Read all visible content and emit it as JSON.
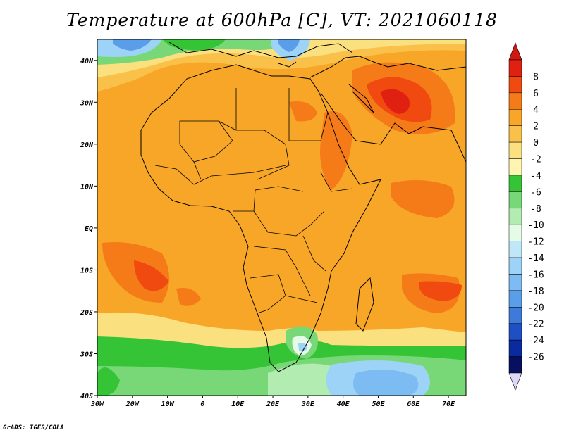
{
  "title": "Temperature at 600hPa [C], VT: 2021060118",
  "credit": "GrADS: IGES/COLA",
  "map": {
    "lon_range": [
      -30,
      75
    ],
    "lat_range": [
      -40,
      45
    ],
    "x_ticks": [
      {
        "value": -30,
        "label": "30W"
      },
      {
        "value": -20,
        "label": "20W"
      },
      {
        "value": -10,
        "label": "10W"
      },
      {
        "value": 0,
        "label": "0"
      },
      {
        "value": 10,
        "label": "10E"
      },
      {
        "value": 20,
        "label": "20E"
      },
      {
        "value": 30,
        "label": "30E"
      },
      {
        "value": 40,
        "label": "40E"
      },
      {
        "value": 50,
        "label": "50E"
      },
      {
        "value": 60,
        "label": "60E"
      },
      {
        "value": 70,
        "label": "70E"
      }
    ],
    "y_ticks": [
      {
        "value": 40,
        "label": "40N"
      },
      {
        "value": 30,
        "label": "30N"
      },
      {
        "value": 20,
        "label": "20N"
      },
      {
        "value": 10,
        "label": "10N"
      },
      {
        "value": 0,
        "label": "EQ"
      },
      {
        "value": -10,
        "label": "10S"
      },
      {
        "value": -20,
        "label": "20S"
      },
      {
        "value": -30,
        "label": "30S"
      },
      {
        "value": -40,
        "label": "40S"
      }
    ]
  },
  "colorbar": {
    "labels": [
      "8",
      "6",
      "4",
      "2",
      "0",
      "-2",
      "-4",
      "-6",
      "-8",
      "-10",
      "-12",
      "-14",
      "-16",
      "-18",
      "-20",
      "-22",
      "-24",
      "-26"
    ],
    "colors": [
      "#e02010",
      "#f04a10",
      "#f57b18",
      "#f7a628",
      "#f9c14a",
      "#fbe080",
      "#fff5b0",
      "#35c435",
      "#78d878",
      "#b2ecb0",
      "#e5fbe8",
      "#bfe7f8",
      "#9dd3f7",
      "#7dbbf3",
      "#5a9de9",
      "#3d7ad9",
      "#1f4fc4",
      "#0a2aa0",
      "#06105e"
    ],
    "top_arrow_color": "#d01810",
    "bottom_arrow_color": "#ddd8f5"
  }
}
